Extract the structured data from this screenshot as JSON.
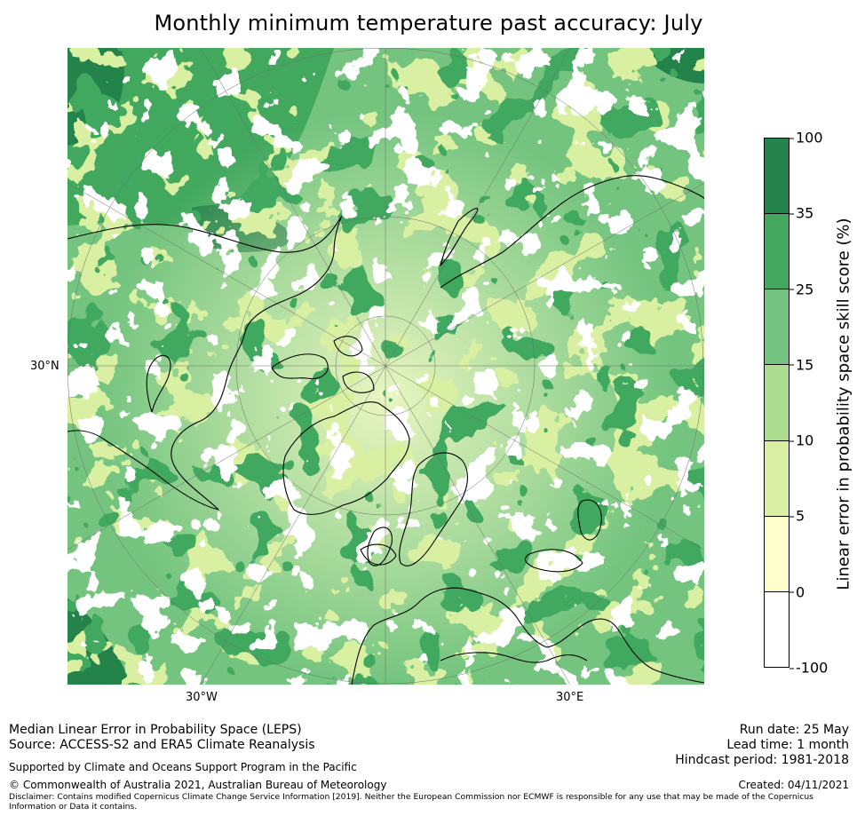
{
  "title": "Monthly minimum temperature past accuracy: July",
  "map": {
    "projection": "polar-stereographic",
    "hemisphere": "north",
    "lon_labels": [
      "30°W",
      "30°E"
    ],
    "lat_labels": [
      "30°N"
    ],
    "colors": {
      "land_outline": "#000000",
      "graticule": "#6e6e6e"
    },
    "regions_depicted": [
      "Greenland",
      "Scandinavia",
      "Europe",
      "North Africa",
      "Arctic Ocean",
      "North Atlantic",
      "Siberia",
      "Canadian Arctic"
    ]
  },
  "colorbar": {
    "label": "Linear error in probability space skill score (%)",
    "ticks": [
      "100",
      "35",
      "25",
      "15",
      "10",
      "5",
      "0",
      "-100"
    ],
    "bins": [
      {
        "range": "35–100",
        "color": "#23834a"
      },
      {
        "range": "25–35",
        "color": "#41a85e"
      },
      {
        "range": "15–25",
        "color": "#74c47f"
      },
      {
        "range": "10–15",
        "color": "#addd8e"
      },
      {
        "range": "5–10",
        "color": "#d9efa1"
      },
      {
        "range": "0–5",
        "color": "#ffffcc"
      },
      {
        "range": "-100–0",
        "color": "#ffffff"
      }
    ]
  },
  "footer": {
    "line1": "Median Linear Error in Probability Space (LEPS)",
    "line2": "Source: ACCESS-S2 and ERA5 Climate Reanalysis",
    "support": "Supported by Climate and Oceans Support Program in the Pacific",
    "copyright": "© Commonwealth of Australia 2021, Australian Bureau of Meteorology",
    "disclaimer": "Disclaimer: Contains modified Copernicus Climate Change Service Information [2019]. Neither the European Commission nor ECMWF is responsible for any use that may be made of the Copernicus Information or Data it contains.",
    "run_date": "Run date: 25 May",
    "lead_time": "Lead time: 1 month",
    "hindcast": "Hindcast period: 1981-2018",
    "created": "Created: 04/11/2021"
  }
}
